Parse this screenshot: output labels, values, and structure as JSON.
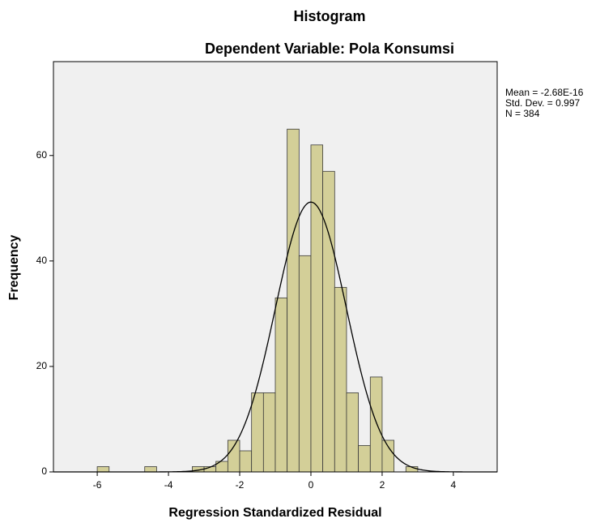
{
  "chart_data": {
    "type": "histogram",
    "title": "Histogram",
    "subtitle": "Dependent Variable: Pola Konsumsi",
    "x_label": "Regression Standardized Residual",
    "y_label": "Frequency",
    "bins": [
      -6,
      -5.667,
      -5.333,
      -5,
      -4.667,
      -4.333,
      -4,
      -3.667,
      -3.333,
      -3,
      -2.667,
      -2.333,
      -2,
      -1.667,
      -1.333,
      -1,
      -0.667,
      -0.333,
      0,
      0.333,
      0.667,
      1,
      1.333,
      1.667,
      2,
      2.333,
      2.667,
      3,
      3.333
    ],
    "values": [
      1,
      0,
      0,
      0,
      1,
      0,
      0,
      0,
      1,
      1,
      2,
      6,
      4,
      15,
      15,
      33,
      65,
      41,
      62,
      57,
      35,
      15,
      5,
      18,
      6,
      0,
      1,
      0
    ],
    "color": "#d3cf98",
    "xlim": [
      -7.23,
      5.23
    ],
    "ylim": [
      0,
      77.8
    ],
    "xticks": [
      -6,
      -4,
      -2,
      0,
      2,
      4
    ],
    "yticks": [
      0,
      20,
      40,
      60
    ],
    "stats": {
      "mean": {
        "value": -2.68e-16,
        "label": "Mean = -2.68E-16"
      },
      "sd": {
        "value": 0.997,
        "label": "Std. Dev. = 0.997"
      },
      "n": {
        "value": 384,
        "label": "N = 384"
      }
    }
  }
}
